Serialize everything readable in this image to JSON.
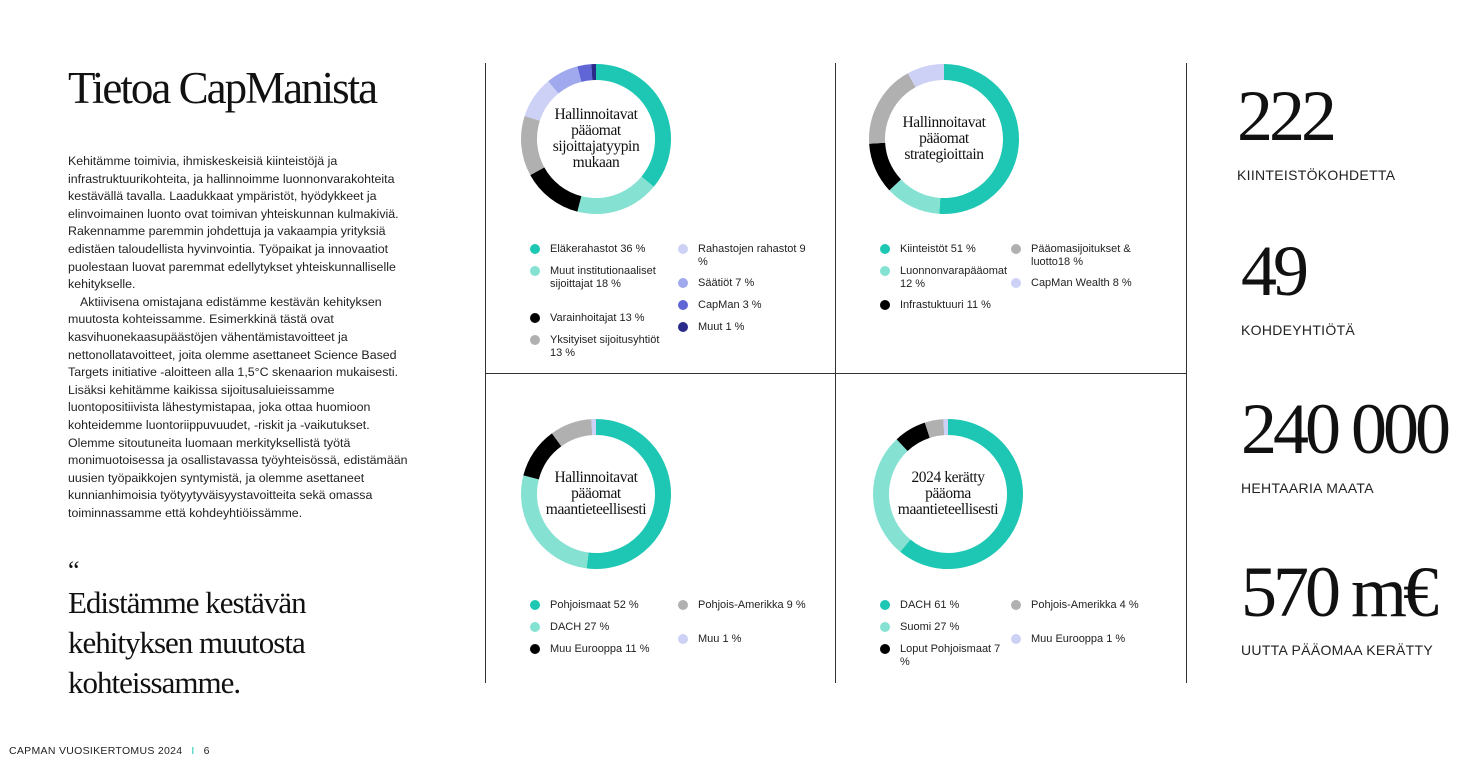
{
  "title": "Tietoa CapManista",
  "body_paragraphs": [
    "Kehitämme toimivia, ihmiskeskeisiä kiinteistöjä ja infrastruktuurikohteita, ja hallinnoimme luonnonvarakohteita kestävällä tavalla. Laadukkaat ympäristöt, hyödykkeet ja elinvoimainen luonto ovat toimivan yhteiskunnan kulmakiviä. Rakennamme paremmin johdettuja ja vakaampia yrityksiä edistäen taloudellista hyvinvointia. Työpaikat ja innovaatiot puolestaan luovat paremmat edellytykset yhteiskunnalliselle kehitykselle.",
    "Aktiivisena omistajana edistämme kestävän kehityksen muutosta kohteissamme. Esimerkkinä tästä ovat kasvihuonekaasupäästöjen vähentämistavoitteet ja nettonollatavoitteet, joita olemme asettaneet Science Based Targets initiative -aloitteen alla 1,5°C skenaarion mukaisesti. Lisäksi kehitämme kaikissa sijoitusaluieissamme luontopositiivista lähestymistapaa, joka ottaa huomioon kohteidemme luontoriippuvuudet, -riskit ja -vaikutukset. Olemme sitoutuneita luomaan merkityksellistä työtä monimuotoisessa ja osallistavassa työyhteisössä, edistämään uusien työpaikkojen syntymistä, ja olemme asettaneet kunnianhimoisia työtyytyväisyystavoitteita sekä omassa toiminnassamme että kohdeyhtiöissämme."
  ],
  "quote_mark": "“",
  "quote": "Edistämme kestävän kehityksen muutosta kohteissamme.",
  "charts": [
    {
      "label": "Hallinnoitavat pääomat sijoittajatyypin mukaan",
      "start": "top",
      "legend_left": [
        {
          "label": "Eläkerahastot 36 %",
          "value": 36,
          "color": "#1dc7b3"
        },
        {
          "label": "Muut institutionaaliset sijoittajat 18 %",
          "value": 18,
          "color": "#85e2d3"
        },
        {
          "label": "Varainhoitajat 13 %",
          "value": 13,
          "color": "#000000"
        },
        {
          "label": "Yksityiset sijoitusyhtiöt 13 %",
          "value": 13,
          "color": "#b0b0b0"
        }
      ],
      "legend_right": [
        {
          "label": "Rahastojen rahastot 9 %",
          "value": 9,
          "color": "#cdd1f5"
        },
        {
          "label": "Säätiöt 7 %",
          "value": 7,
          "color": "#a1a9ee"
        },
        {
          "label": "CapMan 3 %",
          "value": 3,
          "color": "#6166d6"
        },
        {
          "label": "Muut 1 %",
          "value": 1,
          "color": "#2b2a8a"
        }
      ]
    },
    {
      "label": "Hallinnoitavat pääomat strategioittain",
      "start": "top",
      "legend_left": [
        {
          "label": "Kiinteistöt 51 %",
          "value": 51,
          "color": "#1dc7b3"
        },
        {
          "label": "Luonnonvarapääomat 12 %",
          "value": 12,
          "color": "#85e2d3"
        },
        {
          "label": "Infrastuktuuri 11 %",
          "value": 11,
          "color": "#000000"
        }
      ],
      "legend_right": [
        {
          "label": "Pääomasijoitukset & luotto18 %",
          "value": 18,
          "color": "#b0b0b0"
        },
        {
          "label": "CapMan Wealth 8 %",
          "value": 8,
          "color": "#cdd1f5"
        }
      ]
    },
    {
      "label": "Hallinnoitavat pääomat maantieteellisesti",
      "start": "top",
      "legend_left": [
        {
          "label": "Pohjoismaat 52 %",
          "value": 52,
          "color": "#1dc7b3"
        },
        {
          "label": "DACH 27 %",
          "value": 27,
          "color": "#85e2d3"
        },
        {
          "label": "Muu Eurooppa 11 %",
          "value": 11,
          "color": "#000000"
        }
      ],
      "legend_right": [
        {
          "label": "Pohjois-Amerikka 9 %",
          "value": 9,
          "color": "#b0b0b0"
        },
        {
          "label": "Muu 1 %",
          "value": 1,
          "color": "#cdd1f5"
        }
      ]
    },
    {
      "label": "2024 kerätty pääoma maantieteellisesti",
      "start": "top",
      "legend_left": [
        {
          "label": "DACH 61 %",
          "value": 61,
          "color": "#1dc7b3"
        },
        {
          "label": "Suomi 27 %",
          "value": 27,
          "color": "#85e2d3"
        },
        {
          "label": "Loput Pohjoismaat 7 %",
          "value": 7,
          "color": "#000000"
        }
      ],
      "legend_right": [
        {
          "label": "Pohjois-Amerikka 4 %",
          "value": 4,
          "color": "#b0b0b0"
        },
        {
          "label": "Muu Eurooppa 1 %",
          "value": 1,
          "color": "#cdd1f5"
        }
      ]
    }
  ],
  "stats": [
    {
      "number": "222",
      "label": "KIINTEISTÖKOHDETTA"
    },
    {
      "number": "49",
      "label": "KOHDEYHTIÖTÄ"
    },
    {
      "number": "240 000",
      "label": "HEHTAARIA MAATA"
    },
    {
      "number": "570 m€",
      "label": "UUTTA PÄÄOMAA KERÄTTY"
    }
  ],
  "footer": {
    "report": "CAPMAN VUOSIKERTOMUS 2024",
    "separator": "I",
    "page": "6"
  }
}
